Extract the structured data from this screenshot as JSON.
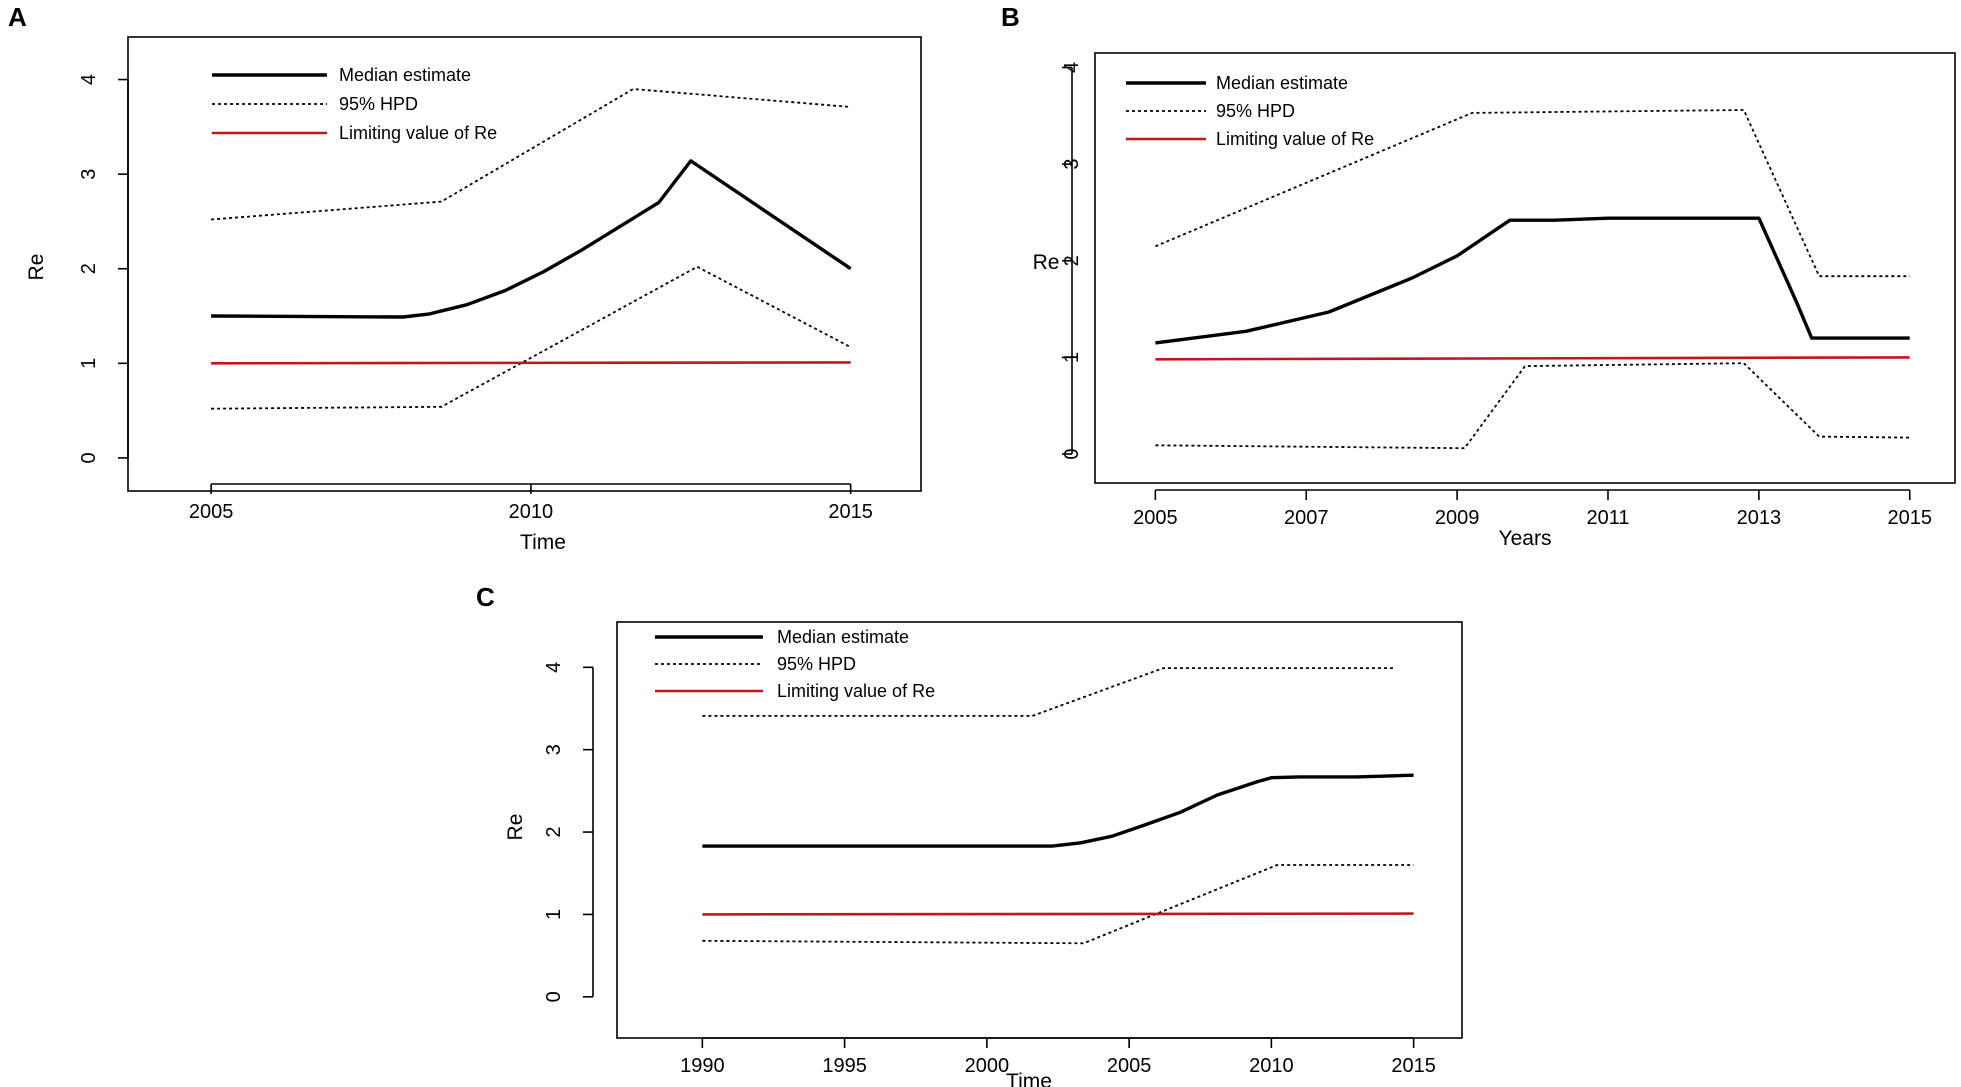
{
  "chart_data": [
    {
      "id": "A",
      "panel_label": "A",
      "type": "line",
      "title": "",
      "xlabel": "Time",
      "ylabel": "Re",
      "xlim": [
        2003.7,
        2016.1
      ],
      "ylim": [
        -0.35,
        4.45
      ],
      "xticks": [
        2005,
        2010,
        2015
      ],
      "xtick_labels": [
        "2005",
        "2010",
        "2015"
      ],
      "yticks": [
        0,
        1,
        2,
        3,
        4
      ],
      "ytick_labels": [
        "0",
        "1",
        "2",
        "3",
        "4"
      ],
      "legend_position": "top-left",
      "legend": [
        {
          "label": "Median estimate",
          "style": "solid-thick",
          "color": "#000000"
        },
        {
          "label": "95% HPD",
          "style": "dotted",
          "color": "#000000"
        },
        {
          "label": "Limiting value of Re",
          "style": "solid",
          "color": "#c0161c"
        }
      ],
      "series": [
        {
          "name": "Median estimate",
          "style": "solid-thick",
          "color": "#000000",
          "x": [
            2005,
            2008,
            2008.4,
            2009,
            2009.6,
            2010.2,
            2010.8,
            2011.4,
            2012,
            2012.5,
            2015
          ],
          "y": [
            1.5,
            1.49,
            1.52,
            1.62,
            1.77,
            1.97,
            2.2,
            2.45,
            2.7,
            3.14,
            2.0
          ]
        },
        {
          "name": "95% HPD upper",
          "style": "dotted",
          "color": "#000000",
          "x": [
            2005,
            2008.6,
            2011.6,
            2015
          ],
          "y": [
            2.52,
            2.71,
            3.9,
            3.71
          ]
        },
        {
          "name": "95% HPD lower",
          "style": "dotted",
          "color": "#000000",
          "x": [
            2005,
            2008.6,
            2012.6,
            2015
          ],
          "y": [
            0.52,
            0.54,
            2.02,
            1.17
          ]
        },
        {
          "name": "Limiting value of Re",
          "style": "solid",
          "color": "#c0161c",
          "x": [
            2005,
            2015
          ],
          "y": [
            1.0,
            1.01
          ]
        }
      ]
    },
    {
      "id": "B",
      "panel_label": "B",
      "type": "line",
      "title": "",
      "xlabel": "Years",
      "ylabel": "Re",
      "xlim": [
        2004.2,
        2015.6
      ],
      "ylim": [
        -0.3,
        4.15
      ],
      "xticks": [
        2005,
        2007,
        2009,
        2011,
        2013,
        2015
      ],
      "xtick_labels": [
        "2005",
        "2007",
        "2009",
        "2011",
        "2013",
        "2015"
      ],
      "yticks": [
        0,
        1,
        2,
        3,
        4
      ],
      "ytick_labels": [
        "0",
        "1",
        "2",
        "3",
        "4"
      ],
      "legend_position": "top-left",
      "legend": [
        {
          "label": "Median estimate",
          "style": "solid-thick",
          "color": "#000000"
        },
        {
          "label": "95% HPD",
          "style": "dotted",
          "color": "#000000"
        },
        {
          "label": "Limiting value of Re",
          "style": "solid",
          "color": "#c0161c"
        }
      ],
      "series": [
        {
          "name": "Median estimate",
          "style": "solid-thick",
          "color": "#000000",
          "x": [
            2005,
            2006.2,
            2007.3,
            2008.4,
            2009.0,
            2009.7,
            2010.3,
            2011.0,
            2012.0,
            2013.0,
            2013.5,
            2013.7,
            2015
          ],
          "y": [
            1.15,
            1.27,
            1.47,
            1.82,
            2.05,
            2.42,
            2.42,
            2.44,
            2.44,
            2.44,
            1.57,
            1.2,
            1.2
          ]
        },
        {
          "name": "95% HPD upper",
          "style": "dotted",
          "color": "#000000",
          "x": [
            2005,
            2009.2,
            2012.8,
            2013.8,
            2015
          ],
          "y": [
            2.15,
            3.53,
            3.56,
            1.84,
            1.84
          ]
        },
        {
          "name": "95% HPD lower",
          "style": "dotted",
          "color": "#000000",
          "x": [
            2005,
            2009.1,
            2009.9,
            2012.8,
            2013.8,
            2015
          ],
          "y": [
            0.09,
            0.06,
            0.91,
            0.94,
            0.18,
            0.17
          ]
        },
        {
          "name": "Limiting value of Re",
          "style": "solid",
          "color": "#c0161c",
          "x": [
            2005,
            2015
          ],
          "y": [
            0.98,
            1.0
          ]
        }
      ]
    },
    {
      "id": "C",
      "panel_label": "C",
      "type": "line",
      "title": "",
      "xlabel": "Time",
      "ylabel": "Re",
      "xlim": [
        1987,
        2016.7
      ],
      "ylim": [
        -0.5,
        4.55
      ],
      "xticks": [
        1990,
        1995,
        2000,
        2005,
        2010,
        2015
      ],
      "xtick_labels": [
        "1990",
        "1995",
        "2000",
        "2005",
        "2010",
        "2015"
      ],
      "yticks": [
        0,
        1,
        2,
        3,
        4
      ],
      "ytick_labels": [
        "0",
        "1",
        "2",
        "3",
        "4"
      ],
      "legend_position": "top-left",
      "legend": [
        {
          "label": "Median estimate",
          "style": "solid-thick",
          "color": "#000000"
        },
        {
          "label": "95% HPD",
          "style": "dotted",
          "color": "#000000"
        },
        {
          "label": "Limiting value of Re",
          "style": "solid",
          "color": "#c0161c"
        }
      ],
      "series": [
        {
          "name": "Median estimate",
          "style": "solid-thick",
          "color": "#000000",
          "x": [
            1990,
            2002.3,
            2003.3,
            2004.4,
            2005.5,
            2006.8,
            2008.1,
            2009.5,
            2010.0,
            2011.0,
            2013.0,
            2015
          ],
          "y": [
            1.83,
            1.83,
            1.87,
            1.95,
            2.08,
            2.24,
            2.45,
            2.61,
            2.66,
            2.67,
            2.67,
            2.69
          ]
        },
        {
          "name": "95% HPD upper",
          "style": "dotted",
          "color": "#000000",
          "x": [
            1990,
            2001.6,
            2006.2,
            2014.3
          ],
          "y": [
            3.41,
            3.41,
            3.99,
            3.99
          ]
        },
        {
          "name": "95% HPD lower",
          "style": "dotted",
          "color": "#000000",
          "x": [
            1990,
            2003.4,
            2010.2,
            2015
          ],
          "y": [
            0.68,
            0.65,
            1.6,
            1.6
          ]
        },
        {
          "name": "Limiting value of Re",
          "style": "solid",
          "color": "#c0161c",
          "x": [
            1990,
            2015
          ],
          "y": [
            1.0,
            1.01
          ]
        }
      ]
    }
  ]
}
